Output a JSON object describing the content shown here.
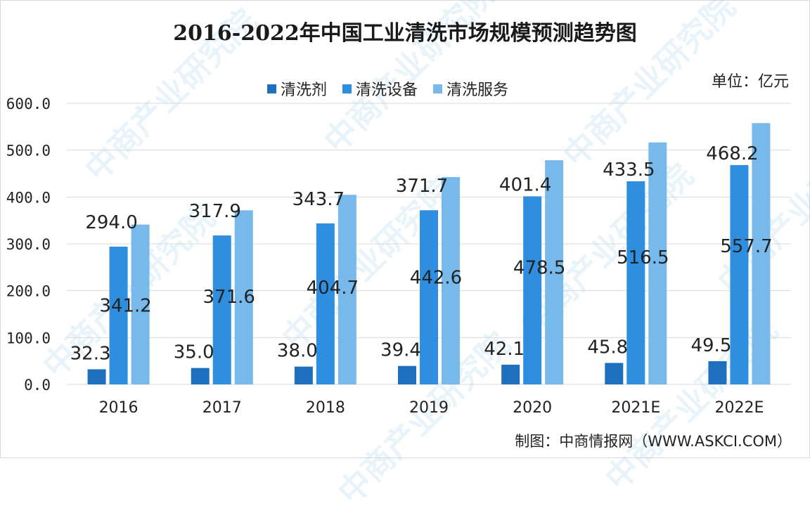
{
  "title": "2016-2022年中国工业清洗市场规模预测趋势图",
  "unit": "单位：亿元",
  "credit": "制图：中商情报网（WWW.ASKCI.COM）",
  "watermark": "中商产业研究院",
  "colors": {
    "series": [
      "#1f6fbf",
      "#2e8fe0",
      "#78b9ec"
    ],
    "grid": "#d9d9d9"
  },
  "chart_data": {
    "type": "bar",
    "categories": [
      "2016",
      "2017",
      "2018",
      "2019",
      "2020",
      "2021E",
      "2022E"
    ],
    "series": [
      {
        "name": "清洗剂",
        "values": [
          32.3,
          35.0,
          38.0,
          39.4,
          42.1,
          45.8,
          49.5
        ]
      },
      {
        "name": "清洗设备",
        "values": [
          294.0,
          317.9,
          343.7,
          371.7,
          401.4,
          433.5,
          468.2
        ]
      },
      {
        "name": "清洗服务",
        "values": [
          341.2,
          371.6,
          404.7,
          442.6,
          478.5,
          516.5,
          557.7
        ]
      }
    ],
    "ylim": [
      0,
      600
    ],
    "yticks": [
      "0.0",
      "100.0",
      "200.0",
      "300.0",
      "400.0",
      "500.0",
      "600.0"
    ],
    "value_labels": [
      [
        "32.3",
        "35.0",
        "38.0",
        "39.4",
        "42.1",
        "45.8",
        "49.5"
      ],
      [
        "294.0",
        "317.9",
        "343.7",
        "371.7",
        "401.4",
        "433.5",
        "468.2"
      ],
      [
        "341.2",
        "371.6",
        "404.7",
        "442.6",
        "478.5",
        "516.5",
        "557.7"
      ]
    ],
    "grid": true,
    "legend_position": "top"
  }
}
